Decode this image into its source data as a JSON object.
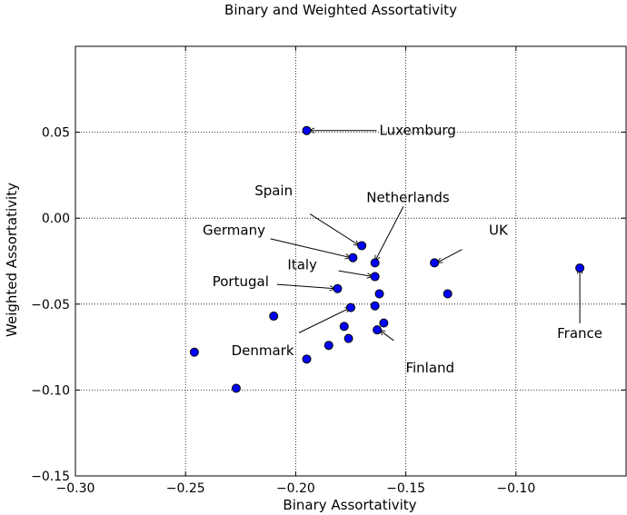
{
  "chart_data": {
    "type": "scatter",
    "title": "Binary and Weighted Assortativity",
    "xlabel": "Binary Assortativity",
    "ylabel": "Weighted Assortativity",
    "xlim": [
      -0.3,
      -0.05
    ],
    "ylim": [
      -0.15,
      0.1
    ],
    "grid": true,
    "marker_color": "#0000ff",
    "x_ticks": [
      -0.3,
      -0.25,
      -0.2,
      -0.15,
      -0.1
    ],
    "x_tick_labels": [
      "−0.30",
      "−0.25",
      "−0.20",
      "−0.15",
      "−0.10"
    ],
    "y_ticks": [
      -0.15,
      -0.1,
      -0.05,
      0.0,
      0.05
    ],
    "y_tick_labels": [
      "−0.15",
      "−0.10",
      "−0.05",
      "0.00",
      "0.05"
    ],
    "points": [
      {
        "x": -0.195,
        "y": 0.051
      },
      {
        "x": -0.17,
        "y": -0.016
      },
      {
        "x": -0.174,
        "y": -0.023
      },
      {
        "x": -0.164,
        "y": -0.026
      },
      {
        "x": -0.137,
        "y": -0.026
      },
      {
        "x": -0.071,
        "y": -0.029
      },
      {
        "x": -0.164,
        "y": -0.034
      },
      {
        "x": -0.181,
        "y": -0.041
      },
      {
        "x": -0.162,
        "y": -0.044
      },
      {
        "x": -0.131,
        "y": -0.044
      },
      {
        "x": -0.164,
        "y": -0.051
      },
      {
        "x": -0.175,
        "y": -0.052
      },
      {
        "x": -0.21,
        "y": -0.057
      },
      {
        "x": -0.16,
        "y": -0.061
      },
      {
        "x": -0.178,
        "y": -0.063
      },
      {
        "x": -0.163,
        "y": -0.065
      },
      {
        "x": -0.176,
        "y": -0.07
      },
      {
        "x": -0.185,
        "y": -0.074
      },
      {
        "x": -0.246,
        "y": -0.078
      },
      {
        "x": -0.195,
        "y": -0.082
      },
      {
        "x": -0.227,
        "y": -0.099
      }
    ],
    "annotations": [
      {
        "text": "Luxemburg",
        "text_x": -0.162,
        "text_y": 0.051,
        "anchor": "start",
        "target_x": -0.194,
        "target_y": 0.051
      },
      {
        "text": "Spain",
        "text_x": -0.21,
        "text_y": 0.016,
        "anchor": "middle",
        "target_x": -0.171,
        "target_y": -0.016
      },
      {
        "text": "Netherlands",
        "text_x": -0.149,
        "text_y": 0.012,
        "anchor": "middle",
        "target_x": -0.164,
        "target_y": -0.025
      },
      {
        "text": "Germany",
        "text_x": -0.228,
        "text_y": -0.007,
        "anchor": "middle",
        "target_x": -0.175,
        "target_y": -0.023
      },
      {
        "text": "UK",
        "text_x": -0.108,
        "text_y": -0.007,
        "anchor": "middle",
        "target_x": -0.136,
        "target_y": -0.026
      },
      {
        "text": "Italy",
        "text_x": -0.197,
        "text_y": -0.027,
        "anchor": "middle",
        "target_x": -0.165,
        "target_y": -0.034
      },
      {
        "text": "Portugal",
        "text_x": -0.225,
        "text_y": -0.037,
        "anchor": "middle",
        "target_x": -0.182,
        "target_y": -0.041
      },
      {
        "text": "France",
        "text_x": -0.071,
        "text_y": -0.067,
        "anchor": "middle",
        "target_x": -0.071,
        "target_y": -0.029
      },
      {
        "text": "Denmark",
        "text_x": -0.215,
        "text_y": -0.077,
        "anchor": "middle",
        "target_x": -0.175,
        "target_y": -0.052
      },
      {
        "text": "Finland",
        "text_x": -0.139,
        "text_y": -0.087,
        "anchor": "middle",
        "target_x": -0.162,
        "target_y": -0.065
      }
    ]
  }
}
